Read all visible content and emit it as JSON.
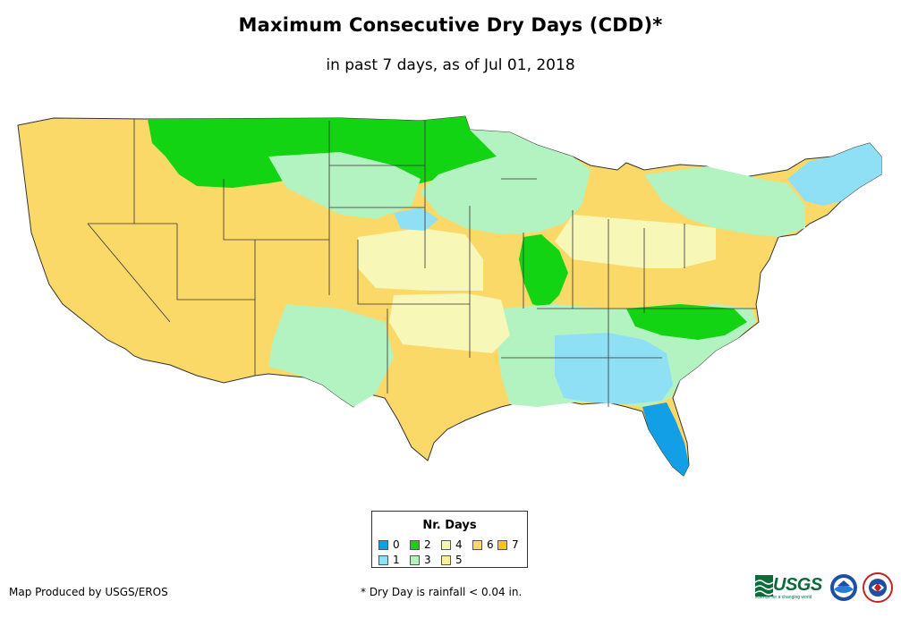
{
  "title": "Maximum Consecutive Dry Days (CDD)*",
  "subtitle": "in past 7 days, as of Jul 01, 2018",
  "legend": {
    "title": "Nr. Days",
    "items": [
      {
        "label": "0",
        "color": "#139fe6"
      },
      {
        "label": "1",
        "color": "#8fe0f5"
      },
      {
        "label": "2",
        "color": "#13d413"
      },
      {
        "label": "3",
        "color": "#b3f2c1"
      },
      {
        "label": "4",
        "color": "#f7f7b8"
      },
      {
        "label": "5",
        "color": "#fbee9a"
      },
      {
        "label": "6",
        "color": "#fbd968"
      },
      {
        "label": "7",
        "color": "#f6c518"
      }
    ]
  },
  "footer": {
    "credit": "Map Produced by USGS/EROS",
    "note": "* Dry Day is rainfall < 0.04 in."
  },
  "logos": {
    "usgs": "USGS",
    "usgs_tagline": "science for a changing world",
    "noaa": "NOAA",
    "nws": "NWS"
  }
}
